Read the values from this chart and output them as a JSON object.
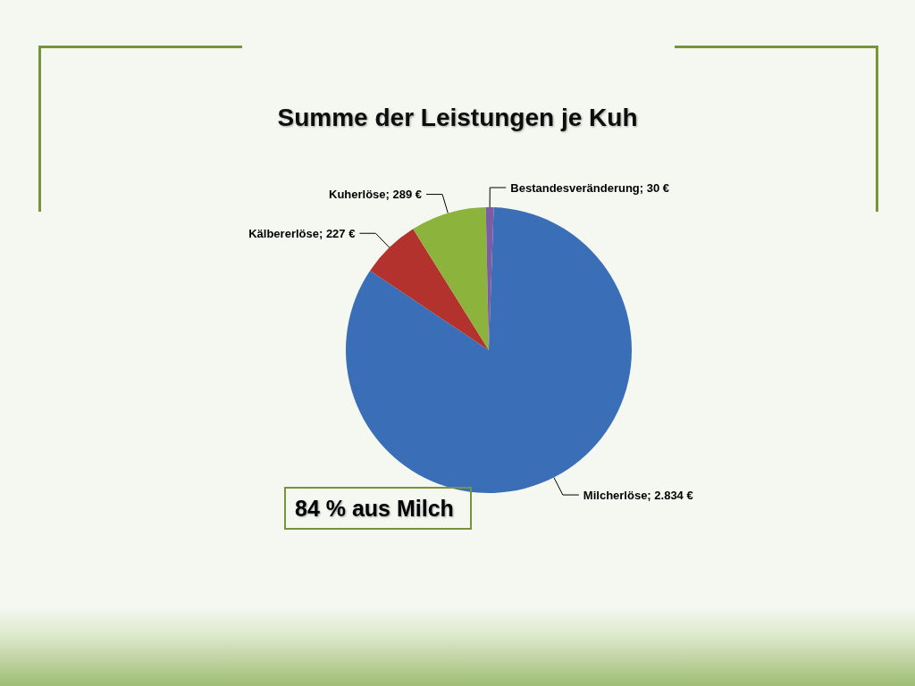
{
  "chart_data": {
    "type": "pie",
    "title": "Summe der Leistungen je Kuh",
    "categories": [
      "Milcherlöse",
      "Kälbererlöse",
      "Kuherlöse",
      "Bestandesveränderung"
    ],
    "values": [
      2834,
      227,
      289,
      30
    ],
    "value_labels": [
      "2.834 €",
      "227 €",
      "289 €",
      "30 €"
    ],
    "colors": [
      "#3a6fb7",
      "#b3322e",
      "#8cb33b",
      "#7d5ca6"
    ],
    "annotations": [
      "84 % aus Milch"
    ],
    "legend": false
  }
}
